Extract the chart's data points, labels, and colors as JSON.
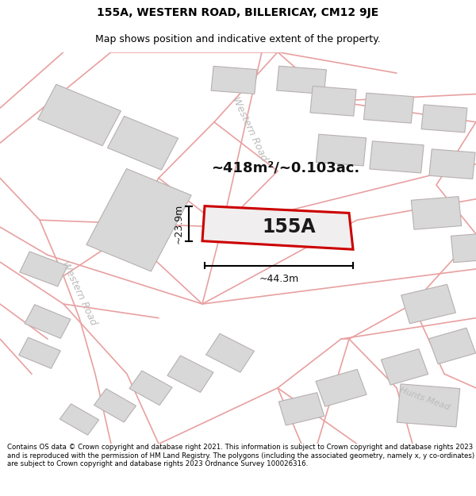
{
  "title": "155A, WESTERN ROAD, BILLERICAY, CM12 9JE",
  "subtitle": "Map shows position and indicative extent of the property.",
  "footer": "Contains OS data © Crown copyright and database right 2021. This information is subject to Crown copyright and database rights 2023 and is reproduced with the permission of HM Land Registry. The polygons (including the associated geometry, namely x, y co-ordinates) are subject to Crown copyright and database rights 2023 Ordnance Survey 100026316.",
  "area_label": "~418m²/~0.103ac.",
  "plot_label": "155A",
  "width_label": "~44.3m",
  "height_label": "~23.9m",
  "road_color": "#e8a0a0",
  "road_lw": 1.2,
  "building_fill": "#d8d8d8",
  "building_edge": "#b8b0b0",
  "building_lw": 0.8,
  "highlight_fill": "#f0eeee",
  "highlight_stroke": "#cc0000",
  "highlight_lw": 2.2,
  "map_bg": "#f8f5f5",
  "title_fontsize": 10,
  "subtitle_fontsize": 9,
  "footer_fontsize": 6.2,
  "western_road_color": "#bbbbbb",
  "hunts_mead_color": "#bbbbbb"
}
